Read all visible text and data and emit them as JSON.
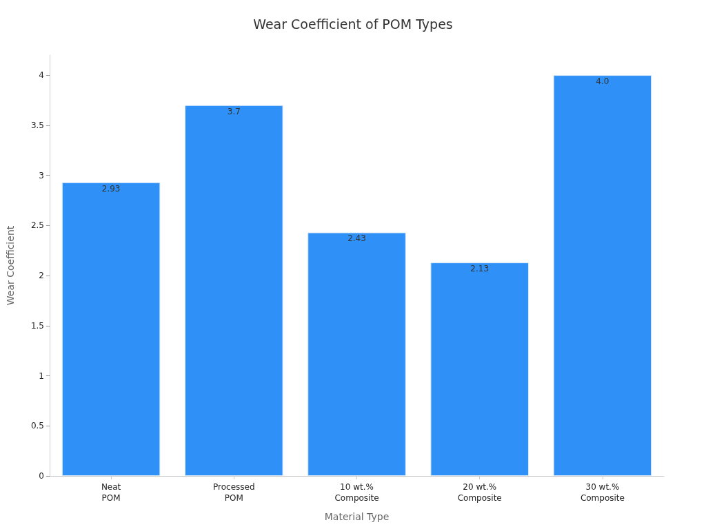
{
  "chart_data": {
    "type": "bar",
    "title": "Wear Coefficient of POM Types",
    "xlabel": "Material Type",
    "ylabel": "Wear Coefficient",
    "categories": [
      "Neat\nPOM",
      "Processed\nPOM",
      "10 wt.%\nComposite",
      "20 wt.%\nComposite",
      "30 wt.%\nComposite"
    ],
    "values": [
      2.93,
      3.7,
      2.43,
      2.13,
      4.0
    ],
    "value_labels": [
      "2.93",
      "3.7",
      "2.43",
      "2.13",
      "4.0"
    ],
    "color": "#2f91f7",
    "ylim": [
      0,
      4.2
    ],
    "yticks": [
      0,
      0.5,
      1,
      1.5,
      2,
      2.5,
      3,
      3.5,
      4
    ],
    "grid": false
  }
}
